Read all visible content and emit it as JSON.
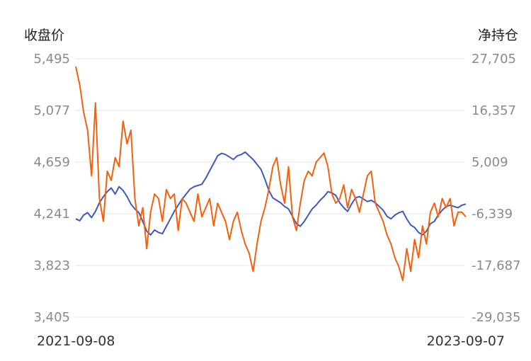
{
  "chart_data": {
    "type": "line",
    "ylabel_left": "收盘价",
    "ylabel_right": "净持仓",
    "x_start_label": "2021-09-08",
    "x_end_label": "2023-09-07",
    "ylim_left": [
      3405,
      5495
    ],
    "ylim_right": [
      -29035,
      27705
    ],
    "yticks_left": [
      "5,495",
      "5,077",
      "4,659",
      "4,241",
      "3,823",
      "3,405"
    ],
    "yticks_right": [
      "27,705",
      "16,357",
      "5,009",
      "-6,339",
      "-17,687",
      "-29,035"
    ],
    "grid": true,
    "series": [
      {
        "color": "#3f57c4",
        "axis": "left",
        "values": [
          4200,
          4185,
          4230,
          4250,
          4210,
          4260,
          4330,
          4380,
          4420,
          4450,
          4400,
          4460,
          4430,
          4380,
          4320,
          4280,
          4250,
          4180,
          4100,
          4070,
          4110,
          4090,
          4080,
          4140,
          4200,
          4260,
          4310,
          4360,
          4400,
          4440,
          4460,
          4470,
          4480,
          4530,
          4590,
          4650,
          4710,
          4730,
          4720,
          4700,
          4680,
          4710,
          4720,
          4740,
          4710,
          4680,
          4640,
          4600,
          4520,
          4430,
          4370,
          4350,
          4330,
          4300,
          4280,
          4220,
          4160,
          4140,
          4180,
          4230,
          4280,
          4310,
          4350,
          4380,
          4420,
          4410,
          4390,
          4330,
          4290,
          4260,
          4320,
          4370,
          4380,
          4360,
          4340,
          4350,
          4330,
          4300,
          4270,
          4220,
          4200,
          4230,
          4250,
          4260,
          4200,
          4150,
          4130,
          4090,
          4070,
          4100,
          4160,
          4180,
          4230,
          4270,
          4300,
          4310,
          4300,
          4290,
          4310,
          4320
        ]
      },
      {
        "color": "#f4600c",
        "axis": "right",
        "values": [
          26000,
          22000,
          16000,
          12000,
          2000,
          18000,
          -3000,
          -8000,
          3000,
          1000,
          6000,
          4000,
          14000,
          9000,
          12000,
          -3000,
          -9000,
          -5000,
          -14000,
          -6000,
          -2000,
          -3000,
          -8000,
          -1000,
          -3000,
          -2000,
          -10000,
          -3000,
          -4000,
          -6000,
          -8000,
          -2000,
          -7000,
          -5000,
          -3000,
          -9000,
          -4000,
          -6000,
          -8000,
          -12000,
          -8000,
          -6000,
          -10000,
          -13000,
          -15000,
          -19000,
          -13000,
          -8000,
          -5000,
          -1000,
          4000,
          6000,
          0,
          -4000,
          4000,
          -7000,
          -10000,
          -4000,
          1000,
          3000,
          2000,
          5000,
          6000,
          7000,
          4000,
          -2000,
          -4000,
          -3000,
          0,
          -5000,
          -1000,
          -3000,
          -6000,
          -2000,
          2000,
          3000,
          -4000,
          -6000,
          -8000,
          -11000,
          -13000,
          -16000,
          -18000,
          -21000,
          -14000,
          -19000,
          -12000,
          -16000,
          -9000,
          -13000,
          -6000,
          -4000,
          -7000,
          -3000,
          -5000,
          -3000,
          -9000,
          -6000,
          -6000,
          -7000
        ]
      }
    ]
  }
}
